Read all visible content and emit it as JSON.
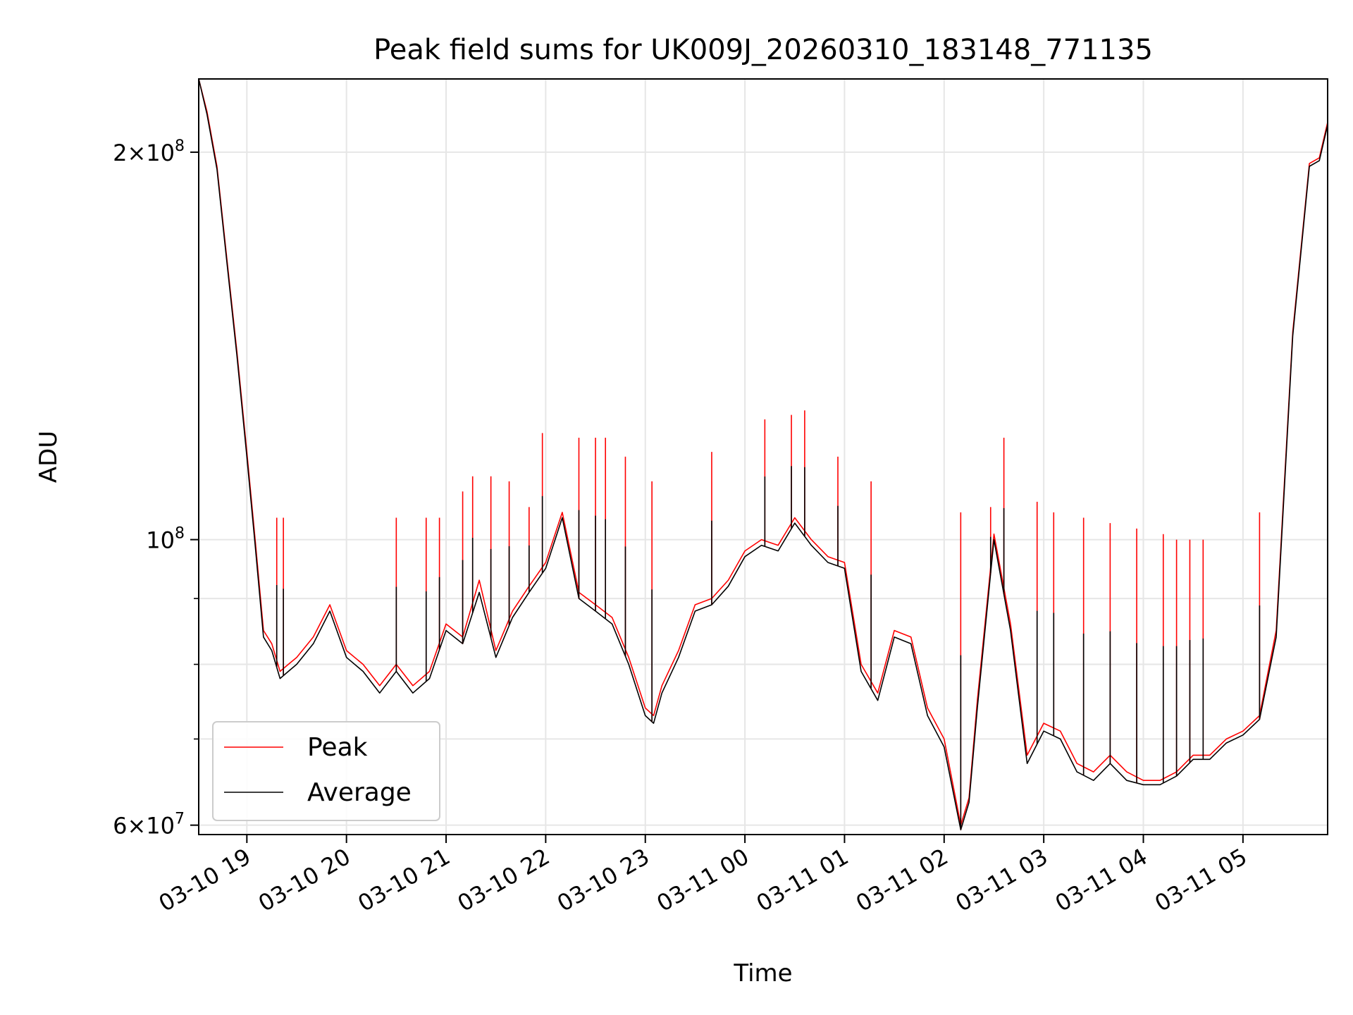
{
  "chart_data": {
    "type": "line",
    "title": "Peak field sums for UK009J_20260310_183148_771135",
    "xlabel": "Time",
    "ylabel": "ADU",
    "y_scale": "log",
    "ylim": [
      59000000,
      228000000
    ],
    "xlim": [
      "03-10 18:31",
      "03-11 05:51"
    ],
    "grid": true,
    "legend_position": "lower-left",
    "x_ticks": [
      "03-10 19",
      "03-10 20",
      "03-10 21",
      "03-10 22",
      "03-10 23",
      "03-11 00",
      "03-11 01",
      "03-11 02",
      "03-11 03",
      "03-11 04",
      "03-11 05"
    ],
    "y_ticks": [
      {
        "value": 60000000,
        "label_base": "6×10",
        "label_exp": "7"
      },
      {
        "value": 100000000,
        "label_base": "10",
        "label_exp": "8"
      },
      {
        "value": 200000000,
        "label_base": "2×10",
        "label_exp": "8"
      }
    ],
    "y_minor_ticks": [
      70000000,
      80000000,
      90000000
    ],
    "x": [
      "03-10 18:31",
      "03-10 18:36",
      "03-10 18:42",
      "03-10 18:48",
      "03-10 18:54",
      "03-10 19:00",
      "03-10 19:05",
      "03-10 19:10",
      "03-10 19:15",
      "03-10 19:20",
      "03-10 19:25",
      "03-10 19:30",
      "03-10 19:40",
      "03-10 19:50",
      "03-10 20:00",
      "03-10 20:10",
      "03-10 20:20",
      "03-10 20:30",
      "03-10 20:40",
      "03-10 20:50",
      "03-10 21:00",
      "03-10 21:10",
      "03-10 21:20",
      "03-10 21:30",
      "03-10 21:40",
      "03-10 21:50",
      "03-10 22:00",
      "03-10 22:10",
      "03-10 22:20",
      "03-10 22:30",
      "03-10 22:40",
      "03-10 22:50",
      "03-10 23:00",
      "03-10 23:05",
      "03-10 23:10",
      "03-10 23:20",
      "03-10 23:30",
      "03-10 23:40",
      "03-10 23:50",
      "03-11 00:00",
      "03-11 00:10",
      "03-11 00:20",
      "03-11 00:30",
      "03-11 00:40",
      "03-11 00:50",
      "03-11 01:00",
      "03-11 01:10",
      "03-11 01:20",
      "03-11 01:30",
      "03-11 01:40",
      "03-11 01:50",
      "03-11 02:00",
      "03-11 02:10",
      "03-11 02:15",
      "03-11 02:20",
      "03-11 02:30",
      "03-11 02:40",
      "03-11 02:50",
      "03-11 03:00",
      "03-11 03:10",
      "03-11 03:20",
      "03-11 03:30",
      "03-11 03:40",
      "03-11 03:50",
      "03-11 04:00",
      "03-11 04:10",
      "03-11 04:20",
      "03-11 04:30",
      "03-11 04:40",
      "03-11 04:50",
      "03-11 05:00",
      "03-11 05:10",
      "03-11 05:20",
      "03-11 05:30",
      "03-11 05:40",
      "03-11 05:46",
      "03-11 05:51"
    ],
    "series": [
      {
        "name": "Peak",
        "color": "#ff0000",
        "values": [
          228000000,
          215000000,
          195000000,
          165000000,
          140000000,
          117000000,
          100000000,
          85000000,
          83000000,
          79000000,
          80000000,
          81000000,
          84000000,
          89000000,
          82000000,
          80000000,
          77000000,
          80000000,
          77000000,
          79000000,
          86000000,
          84000000,
          93000000,
          82000000,
          88000000,
          92000000,
          96000000,
          105000000,
          91000000,
          89000000,
          87000000,
          81000000,
          74000000,
          73000000,
          77000000,
          82000000,
          89000000,
          90000000,
          93000000,
          98000000,
          100000000,
          99000000,
          104000000,
          100000000,
          97000000,
          96000000,
          80000000,
          76000000,
          85000000,
          84000000,
          74000000,
          70000000,
          60000000,
          63000000,
          75000000,
          101000000,
          86000000,
          68000000,
          72000000,
          71000000,
          67000000,
          66000000,
          68000000,
          66000000,
          65000000,
          65000000,
          66000000,
          68000000,
          68000000,
          70000000,
          71000000,
          73000000,
          85000000,
          145000000,
          196000000,
          198000000,
          211000000
        ]
      },
      {
        "name": "Average",
        "color": "#000000",
        "values": [
          228000000,
          214000000,
          194000000,
          164000000,
          139000000,
          116000000,
          99000000,
          84000000,
          82000000,
          78000000,
          79000000,
          80000000,
          83000000,
          88000000,
          81000000,
          79000000,
          76000000,
          79000000,
          76000000,
          78000000,
          85000000,
          83000000,
          91000000,
          81000000,
          87000000,
          91000000,
          95000000,
          104000000,
          90000000,
          88000000,
          86000000,
          80000000,
          73000000,
          72000000,
          76000000,
          81000000,
          88000000,
          89000000,
          92000000,
          97000000,
          99000000,
          98000000,
          103000000,
          99000000,
          96000000,
          95000000,
          79000000,
          75000000,
          84000000,
          83000000,
          73000000,
          69000000,
          59500000,
          62500000,
          74000000,
          100000000,
          85000000,
          67000000,
          71000000,
          70000000,
          66000000,
          65000000,
          67000000,
          65000000,
          64500000,
          64500000,
          65500000,
          67500000,
          67500000,
          69500000,
          70500000,
          72500000,
          84000000,
          144000000,
          195000000,
          197000000,
          210000000
        ]
      }
    ],
    "spikes": [
      {
        "x": "03-10 19:18",
        "value": 104000000
      },
      {
        "x": "03-10 19:22",
        "value": 104000000
      },
      {
        "x": "03-10 20:30",
        "value": 104000000
      },
      {
        "x": "03-10 20:48",
        "value": 104000000
      },
      {
        "x": "03-10 20:56",
        "value": 104000000
      },
      {
        "x": "03-10 21:10",
        "value": 109000000
      },
      {
        "x": "03-10 21:16",
        "value": 112000000
      },
      {
        "x": "03-10 21:27",
        "value": 112000000
      },
      {
        "x": "03-10 21:38",
        "value": 111000000
      },
      {
        "x": "03-10 21:50",
        "value": 106000000
      },
      {
        "x": "03-10 21:58",
        "value": 121000000
      },
      {
        "x": "03-10 22:20",
        "value": 120000000
      },
      {
        "x": "03-10 22:30",
        "value": 120000000
      },
      {
        "x": "03-10 22:36",
        "value": 120000000
      },
      {
        "x": "03-10 22:48",
        "value": 116000000
      },
      {
        "x": "03-10 23:04",
        "value": 111000000
      },
      {
        "x": "03-10 23:40",
        "value": 117000000
      },
      {
        "x": "03-11 00:12",
        "value": 124000000
      },
      {
        "x": "03-11 00:28",
        "value": 125000000
      },
      {
        "x": "03-11 00:36",
        "value": 126000000
      },
      {
        "x": "03-11 00:56",
        "value": 116000000
      },
      {
        "x": "03-11 01:16",
        "value": 111000000
      },
      {
        "x": "03-11 02:10",
        "value": 105000000
      },
      {
        "x": "03-11 02:28",
        "value": 106000000
      },
      {
        "x": "03-11 02:36",
        "value": 120000000
      },
      {
        "x": "03-11 02:56",
        "value": 107000000
      },
      {
        "x": "03-11 03:06",
        "value": 105000000
      },
      {
        "x": "03-11 03:24",
        "value": 104000000
      },
      {
        "x": "03-11 03:40",
        "value": 103000000
      },
      {
        "x": "03-11 03:56",
        "value": 102000000
      },
      {
        "x": "03-11 04:12",
        "value": 101000000
      },
      {
        "x": "03-11 04:20",
        "value": 100000000
      },
      {
        "x": "03-11 04:28",
        "value": 100000000
      },
      {
        "x": "03-11 04:36",
        "value": 100000000
      },
      {
        "x": "03-11 05:10",
        "value": 105000000
      }
    ]
  }
}
